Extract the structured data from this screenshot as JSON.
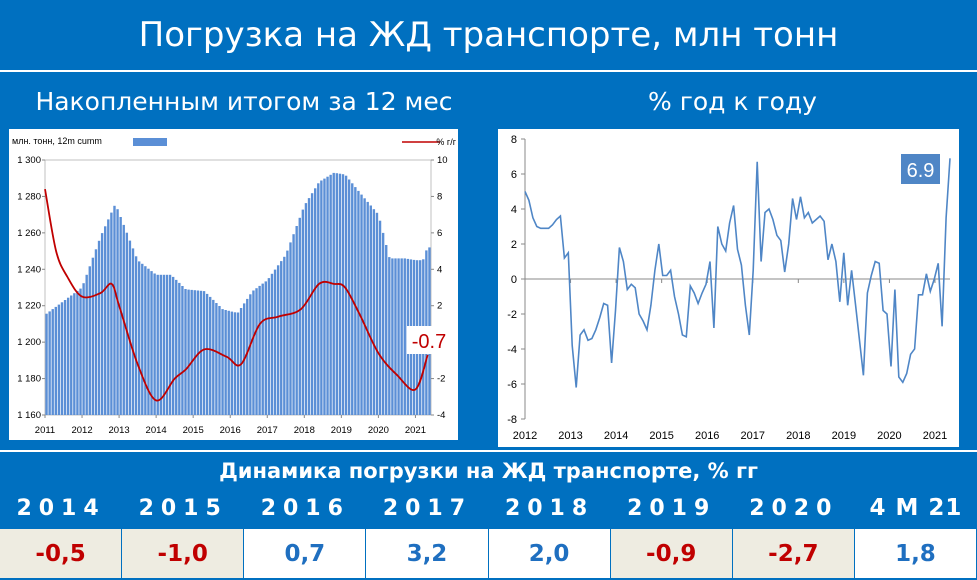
{
  "header": {
    "title": "Погрузка на ЖД транспорте, млн тонн",
    "left_subtitle": "Накопленным итогом за 12 мес",
    "right_subtitle": "% год к году"
  },
  "colors": {
    "background": "#0070c0",
    "bars": "#5b8fd6",
    "line_red": "#c00000",
    "line_blue": "#4f86c6",
    "negative": "#c00000",
    "positive": "#1f6fc0",
    "cell_neg": "#eeece1",
    "cell_pos": "#ffffff"
  },
  "chart_data": [
    {
      "type": "bar+line",
      "legend_left": "млн. тонн, 12m cumm",
      "legend_right": "% г/г",
      "legend_placement": "top",
      "left_axis": {
        "min": 1160,
        "max": 1300,
        "ticks": [
          "1 160",
          "1 180",
          "1 200",
          "1 220",
          "1 240",
          "1 260",
          "1 280",
          "1 300"
        ]
      },
      "right_axis": {
        "min": -4,
        "max": 10,
        "ticks": [
          "-4",
          "-2",
          "0",
          "2",
          "4",
          "6",
          "8",
          "10"
        ]
      },
      "x_ticks": [
        "2011",
        "2012",
        "2013",
        "2014",
        "2015",
        "2016",
        "2017",
        "2018",
        "2019",
        "2020",
        "2021"
      ],
      "annotation": "-0.7",
      "x_start": 2011.0,
      "x_end": 2021.42,
      "bars": {
        "name": "млн. тонн, 12m cumm",
        "x": [
          2011.0,
          2012.0,
          2012.5,
          2012.9,
          2013.5,
          2014.0,
          2014.4,
          2014.8,
          2015.3,
          2015.8,
          2016.2,
          2016.6,
          2017.0,
          2017.5,
          2018.0,
          2018.4,
          2018.8,
          2019.1,
          2019.5,
          2020.0,
          2020.3,
          2020.7,
          2021.0,
          2021.2,
          2021.32
        ],
        "values": [
          1215,
          1230,
          1258,
          1276,
          1245,
          1237,
          1237,
          1229,
          1228,
          1218,
          1216,
          1228,
          1234,
          1248,
          1275,
          1288,
          1293,
          1292,
          1282,
          1270,
          1246,
          1246,
          1245,
          1245,
          1252
        ]
      },
      "line": {
        "name": "% г/г",
        "x": [
          2011.0,
          2011.3,
          2011.6,
          2012.0,
          2012.5,
          2012.8,
          2013.0,
          2013.5,
          2014.0,
          2014.5,
          2014.8,
          2015.3,
          2015.9,
          2016.3,
          2016.8,
          2017.3,
          2017.9,
          2018.4,
          2018.8,
          2019.1,
          2019.5,
          2020.0,
          2020.5,
          2021.0,
          2021.33
        ],
        "values": [
          8.4,
          5.0,
          3.6,
          2.5,
          2.7,
          3.2,
          2.0,
          -1.2,
          -3.2,
          -2.0,
          -1.5,
          -0.4,
          -0.8,
          -1.2,
          1.0,
          1.4,
          1.8,
          3.2,
          3.2,
          3.0,
          1.5,
          -0.6,
          -1.8,
          -2.6,
          -0.7
        ]
      }
    },
    {
      "type": "line",
      "y_axis": {
        "min": -8,
        "max": 8,
        "ticks": [
          "-8",
          "-6",
          "-4",
          "-2",
          "0",
          "2",
          "4",
          "6",
          "8"
        ]
      },
      "x_ticks": [
        "2012",
        "2013",
        "2014",
        "2015",
        "2016",
        "2017",
        "2018",
        "2019",
        "2020",
        "2021"
      ],
      "annotation": "6.9",
      "x_start": 2012.0,
      "x_end": 2021.33,
      "series": [
        {
          "values": [
            5.0,
            4.5,
            3.5,
            3.0,
            2.9,
            2.9,
            2.9,
            3.1,
            3.4,
            3.6,
            1.2,
            1.5,
            -3.8,
            -6.2,
            -3.2,
            -2.9,
            -3.5,
            -3.4,
            -2.9,
            -2.2,
            -1.4,
            -1.5,
            -4.8,
            -1.8,
            1.8,
            1.0,
            -0.6,
            -0.3,
            -0.5,
            -2.0,
            -2.4,
            -2.9,
            -1.5,
            0.5,
            2.0,
            0.2,
            0.2,
            0.5,
            -1.0,
            -2.0,
            -3.2,
            -3.3,
            -0.4,
            -0.8,
            -1.4,
            -0.8,
            -0.3,
            1.0,
            -2.8,
            3.0,
            2.0,
            1.6,
            3.2,
            4.2,
            1.7,
            0.8,
            -1.5,
            -3.2,
            0.5,
            6.7,
            1.0,
            3.8,
            4.0,
            3.4,
            2.5,
            2.2,
            0.4,
            2.0,
            4.6,
            3.4,
            4.7,
            3.5,
            3.8,
            3.2,
            3.4,
            3.6,
            3.3,
            1.1,
            2.0,
            1.0,
            -1.3,
            1.5,
            -1.5,
            0.5,
            -1.5,
            -3.5,
            -5.5,
            -0.8,
            0.2,
            1.0,
            0.9,
            -1.8,
            -2.0,
            -5.0,
            -0.6,
            -5.6,
            -5.9,
            -5.4,
            -4.3,
            -4.0,
            -0.9,
            -0.9,
            0.3,
            -0.7,
            0.0,
            0.9,
            -2.7,
            3.5,
            6.9
          ]
        }
      ]
    }
  ],
  "table": {
    "title": "Динамика погрузки на ЖД транспорте, % гг",
    "columns": [
      {
        "year": "2014",
        "value": "-0,5",
        "sign": "neg"
      },
      {
        "year": "2015",
        "value": "-1,0",
        "sign": "neg"
      },
      {
        "year": "2016",
        "value": "0,7",
        "sign": "pos"
      },
      {
        "year": "2017",
        "value": "3,2",
        "sign": "pos"
      },
      {
        "year": "2018",
        "value": "2,0",
        "sign": "pos"
      },
      {
        "year": "2019",
        "value": "-0,9",
        "sign": "neg"
      },
      {
        "year": "2020",
        "value": "-2,7",
        "sign": "neg"
      },
      {
        "year": "4 M 21",
        "value": "1,8",
        "sign": "pos"
      }
    ]
  }
}
